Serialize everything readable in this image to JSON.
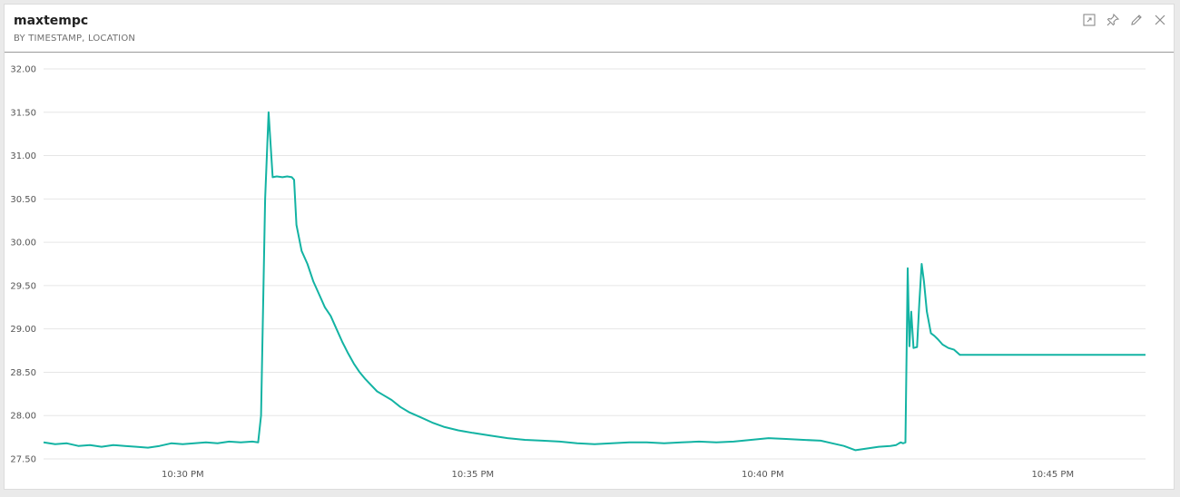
{
  "tile": {
    "title": "maxtempc",
    "subtitle": "BY TIMESTAMP, LOCATION"
  },
  "toolbar": {
    "icons": [
      "focus-mode-icon",
      "pin-icon",
      "edit-icon",
      "close-icon"
    ]
  },
  "colors": {
    "series": "#13b3a3",
    "grid": "#e6e6e6",
    "axis_text": "#555555"
  },
  "chart_data": {
    "type": "line",
    "title": "maxtempc",
    "subtitle": "BY TIMESTAMP, LOCATION",
    "xlabel": "",
    "ylabel": "",
    "x_unit": "minutes after 10:00 PM",
    "xlim": [
      27.6,
      46.6
    ],
    "ylim": [
      27.5,
      32.0
    ],
    "y_ticks": [
      27.5,
      28.0,
      28.5,
      29.0,
      29.5,
      30.0,
      30.5,
      31.0,
      31.5,
      32.0
    ],
    "y_tick_labels": [
      "27.50",
      "28.00",
      "28.50",
      "29.00",
      "29.50",
      "30.00",
      "30.50",
      "31.00",
      "31.50",
      "32.00"
    ],
    "x_ticks": [
      30,
      35,
      40,
      45
    ],
    "x_tick_labels": [
      "10:30 PM",
      "10:35 PM",
      "10:40 PM",
      "10:45 PM"
    ],
    "grid": true,
    "legend": "none",
    "series": [
      {
        "x": [
          27.6,
          27.8,
          28.0,
          28.2,
          28.4,
          28.6,
          28.8,
          29.0,
          29.2,
          29.4,
          29.6,
          29.8,
          30.0,
          30.2,
          30.4,
          30.6,
          30.8,
          31.0,
          31.2,
          31.3,
          31.35,
          31.42,
          31.48,
          31.55,
          31.62,
          31.72,
          31.8,
          31.88,
          31.92,
          31.96,
          32.05,
          32.15,
          32.25,
          32.35,
          32.45,
          32.55,
          32.65,
          32.75,
          32.85,
          32.95,
          33.05,
          33.15,
          33.25,
          33.35,
          33.45,
          33.6,
          33.75,
          33.9,
          34.1,
          34.3,
          34.5,
          34.75,
          35.0,
          35.3,
          35.6,
          35.9,
          36.2,
          36.5,
          36.8,
          37.1,
          37.4,
          37.7,
          38.0,
          38.3,
          38.6,
          38.9,
          39.2,
          39.5,
          39.8,
          40.1,
          40.4,
          40.7,
          41.0,
          41.2,
          41.4,
          41.6,
          41.8,
          42.0,
          42.2,
          42.3,
          42.35,
          42.38,
          42.42,
          42.46,
          42.5,
          42.53,
          42.56,
          42.6,
          42.66,
          42.7,
          42.74,
          42.78,
          42.83,
          42.9,
          42.96,
          43.02,
          43.1,
          43.2,
          43.3,
          43.4,
          43.5,
          43.6,
          43.8,
          44.2,
          44.8,
          45.4,
          46.0,
          46.6
        ],
        "y": [
          27.69,
          27.67,
          27.68,
          27.65,
          27.66,
          27.64,
          27.66,
          27.65,
          27.64,
          27.63,
          27.65,
          27.68,
          27.67,
          27.68,
          27.69,
          27.68,
          27.7,
          27.69,
          27.7,
          27.69,
          28.0,
          30.5,
          31.5,
          30.75,
          30.76,
          30.75,
          30.76,
          30.75,
          30.72,
          30.2,
          29.9,
          29.75,
          29.55,
          29.4,
          29.25,
          29.15,
          29.0,
          28.85,
          28.72,
          28.6,
          28.5,
          28.42,
          28.35,
          28.28,
          28.24,
          28.18,
          28.1,
          28.04,
          27.98,
          27.92,
          27.87,
          27.83,
          27.8,
          27.77,
          27.74,
          27.72,
          27.71,
          27.7,
          27.68,
          27.67,
          27.68,
          27.69,
          27.69,
          27.68,
          27.69,
          27.7,
          27.69,
          27.7,
          27.72,
          27.74,
          27.73,
          27.72,
          27.71,
          27.68,
          27.65,
          27.6,
          27.62,
          27.64,
          27.65,
          27.66,
          27.68,
          27.69,
          27.68,
          27.69,
          29.7,
          28.8,
          29.2,
          28.78,
          28.79,
          29.3,
          29.75,
          29.55,
          29.2,
          28.95,
          28.92,
          28.88,
          28.82,
          28.78,
          28.76,
          28.7,
          28.7,
          28.7,
          28.7,
          28.7,
          28.7,
          28.7,
          28.7,
          28.7
        ]
      }
    ]
  }
}
